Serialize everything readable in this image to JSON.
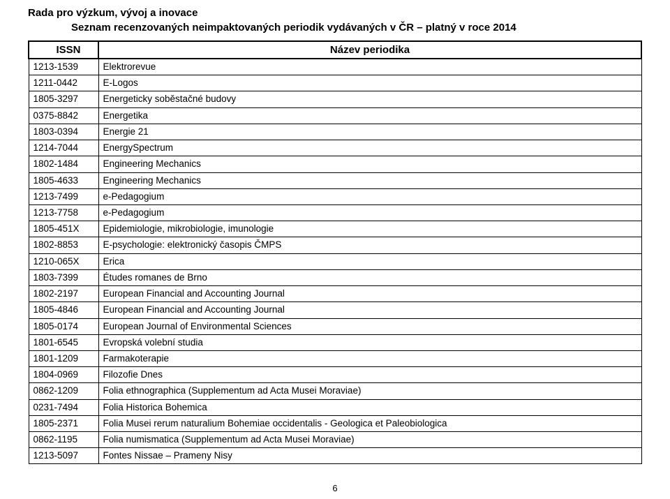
{
  "heading_main": "Rada pro výzkum, vývoj a inovace",
  "heading_sub": "Seznam recenzovaných neimpaktovaných periodik vydávaných v ČR – platný v roce 2014",
  "table": {
    "header_issn": "ISSN",
    "header_name": "Název periodika",
    "rows": [
      {
        "issn": "1213-1539",
        "name": "Elektrorevue"
      },
      {
        "issn": "1211-0442",
        "name": "E-Logos"
      },
      {
        "issn": "1805-3297",
        "name": "Energeticky soběstačné budovy"
      },
      {
        "issn": "0375-8842",
        "name": "Energetika"
      },
      {
        "issn": "1803-0394",
        "name": "Energie 21"
      },
      {
        "issn": "1214-7044",
        "name": "EnergySpectrum"
      },
      {
        "issn": "1802-1484",
        "name": "Engineering Mechanics"
      },
      {
        "issn": "1805-4633",
        "name": "Engineering Mechanics"
      },
      {
        "issn": "1213-7499",
        "name": "e-Pedagogium"
      },
      {
        "issn": "1213-7758",
        "name": "e-Pedagogium"
      },
      {
        "issn": "1805-451X",
        "name": "Epidemiologie, mikrobiologie, imunologie"
      },
      {
        "issn": "1802-8853",
        "name": "E-psychologie: elektronický časopis ČMPS"
      },
      {
        "issn": "1210-065X",
        "name": "Erica"
      },
      {
        "issn": "1803-7399",
        "name": "Études romanes de Brno"
      },
      {
        "issn": "1802-2197",
        "name": "European Financial and Accounting Journal"
      },
      {
        "issn": "1805-4846",
        "name": "European Financial and Accounting Journal"
      },
      {
        "issn": "1805-0174",
        "name": "European Journal of Environmental Sciences"
      },
      {
        "issn": "1801-6545",
        "name": "Evropská volební studia"
      },
      {
        "issn": "1801-1209",
        "name": "Farmakoterapie"
      },
      {
        "issn": "1804-0969",
        "name": "Filozofie Dnes"
      },
      {
        "issn": "0862-1209",
        "name": "Folia ethnographica (Supplementum ad Acta Musei Moraviae)"
      },
      {
        "issn": "0231-7494",
        "name": "Folia Historica Bohemica"
      },
      {
        "issn": "1805-2371",
        "name": "Folia Musei rerum naturalium Bohemiae occidentalis - Geologica et Paleobiologica"
      },
      {
        "issn": "0862-1195",
        "name": "Folia numismatica (Supplementum ad Acta Musei Moraviae)"
      },
      {
        "issn": "1213-5097",
        "name": "Fontes Nissae – Prameny Nisy"
      }
    ]
  },
  "page_number": "6"
}
